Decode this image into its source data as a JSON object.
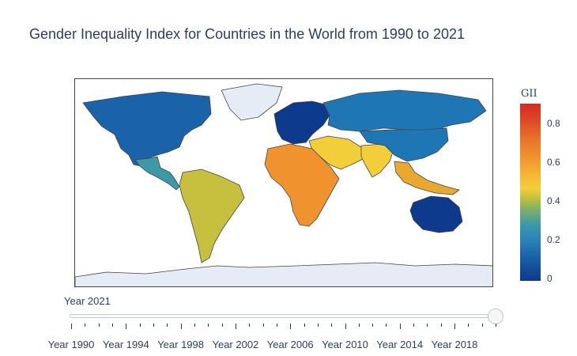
{
  "title": "Gender Inequality Index for Countries in the World from 1990 to 2021",
  "colorbar": {
    "title": "GII",
    "ticks": [
      "0",
      "0.2",
      "0.4",
      "0.6",
      "0.8"
    ],
    "range": [
      0,
      0.9
    ]
  },
  "map": {
    "projection": "equirectangular",
    "missing_color": "#e5ecf6",
    "border_color": "#444444",
    "region_colors": {
      "north_america": "#1a63a8",
      "greenland": "#e5ecf6",
      "central_america": "#3c9aa8",
      "south_america": "#c6c03e",
      "europe": "#0d3a8c",
      "russia_north_asia": "#1e77b4",
      "middle_east": "#f2cf3a",
      "africa": "#f0922e",
      "south_asia": "#f2cf3a",
      "east_asia": "#1e77b4",
      "southeast_asia": "#e9a830",
      "australia": "#0d3a8c",
      "antarctica": "#e5ecf6"
    }
  },
  "slider": {
    "current_label": "Year 2021",
    "current_value": 2021,
    "min": 1990,
    "max": 2021,
    "tick_labels": [
      "Year 1990",
      "Year 1994",
      "Year 1998",
      "Year 2002",
      "Year 2006",
      "Year 2010",
      "Year 2014",
      "Year 2018"
    ]
  }
}
